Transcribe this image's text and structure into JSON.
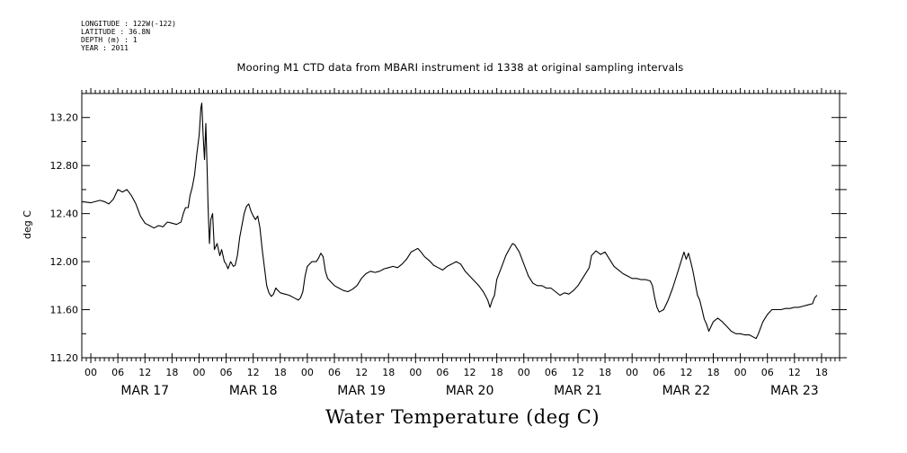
{
  "header": {
    "longitude": "LONGITUDE : 122W(-122)",
    "latitude": "LATITUDE : 36.8N",
    "depth": "DEPTH (m) : 1",
    "year": "YEAR : 2011"
  },
  "chart_data": {
    "type": "line",
    "title": "Mooring M1 CTD data from MBARI instrument id 1338 at original sampling intervals",
    "xlabel": "Water Temperature (deg C)",
    "ylabel": "deg C",
    "ylim": [
      11.2,
      13.4
    ],
    "yticks": [
      "13.20",
      "12.80",
      "12.40",
      "12.00",
      "11.60",
      "11.20"
    ],
    "xlim_hours": [
      -2,
      166
    ],
    "hour_labels": [
      "00",
      "06",
      "12",
      "18",
      "00",
      "06",
      "12",
      "18",
      "00",
      "06",
      "12",
      "18",
      "00",
      "06",
      "12",
      "18",
      "00",
      "06",
      "12",
      "18",
      "00",
      "06",
      "12",
      "18",
      "00",
      "06",
      "12",
      "18"
    ],
    "day_labels": [
      "MAR 17",
      "MAR 18",
      "MAR 19",
      "MAR 20",
      "MAR 21",
      "MAR 22",
      "MAR 23"
    ],
    "grid": false,
    "series": [
      {
        "color": "#000000",
        "x_unit": "hours since MAR 17 00",
        "points": [
          [
            -2,
            12.5
          ],
          [
            0,
            12.49
          ],
          [
            2,
            12.51
          ],
          [
            3,
            12.5
          ],
          [
            4,
            12.48
          ],
          [
            5,
            12.52
          ],
          [
            6,
            12.6
          ],
          [
            7,
            12.58
          ],
          [
            8,
            12.6
          ],
          [
            9,
            12.55
          ],
          [
            10,
            12.48
          ],
          [
            11,
            12.38
          ],
          [
            12,
            12.32
          ],
          [
            13,
            12.3
          ],
          [
            14,
            12.28
          ],
          [
            15,
            12.3
          ],
          [
            16,
            12.29
          ],
          [
            17,
            12.33
          ],
          [
            18,
            12.32
          ],
          [
            19,
            12.31
          ],
          [
            20,
            12.33
          ],
          [
            20.5,
            12.4
          ],
          [
            21,
            12.45
          ],
          [
            21.6,
            12.45
          ],
          [
            22,
            12.55
          ],
          [
            22.5,
            12.62
          ],
          [
            23,
            12.72
          ],
          [
            23.5,
            12.9
          ],
          [
            24,
            13.05
          ],
          [
            24.4,
            13.28
          ],
          [
            24.6,
            13.32
          ],
          [
            24.9,
            13.05
          ],
          [
            25.2,
            12.85
          ],
          [
            25.5,
            13.15
          ],
          [
            25.8,
            12.75
          ],
          [
            26,
            12.45
          ],
          [
            26.3,
            12.15
          ],
          [
            26.6,
            12.35
          ],
          [
            27,
            12.4
          ],
          [
            27.4,
            12.1
          ],
          [
            28,
            12.15
          ],
          [
            28.6,
            12.05
          ],
          [
            29,
            12.1
          ],
          [
            29.6,
            12.0
          ],
          [
            30,
            11.98
          ],
          [
            30.4,
            11.94
          ],
          [
            31,
            12.0
          ],
          [
            31.6,
            11.96
          ],
          [
            32,
            11.97
          ],
          [
            32.5,
            12.05
          ],
          [
            33,
            12.2
          ],
          [
            33.5,
            12.3
          ],
          [
            34,
            12.4
          ],
          [
            34.5,
            12.46
          ],
          [
            35,
            12.48
          ],
          [
            35.5,
            12.42
          ],
          [
            36,
            12.38
          ],
          [
            36.5,
            12.35
          ],
          [
            37,
            12.38
          ],
          [
            37.5,
            12.28
          ],
          [
            38,
            12.1
          ],
          [
            38.5,
            11.95
          ],
          [
            39,
            11.8
          ],
          [
            39.5,
            11.74
          ],
          [
            40,
            11.71
          ],
          [
            40.5,
            11.73
          ],
          [
            41,
            11.78
          ],
          [
            41.5,
            11.76
          ],
          [
            42,
            11.74
          ],
          [
            43,
            11.73
          ],
          [
            44,
            11.72
          ],
          [
            45,
            11.7
          ],
          [
            46,
            11.68
          ],
          [
            46.5,
            11.7
          ],
          [
            47,
            11.75
          ],
          [
            47.5,
            11.88
          ],
          [
            48,
            11.96
          ],
          [
            49,
            12.0
          ],
          [
            50,
            12.0
          ],
          [
            50.5,
            12.03
          ],
          [
            51,
            12.07
          ],
          [
            51.5,
            12.04
          ],
          [
            52,
            11.92
          ],
          [
            52.5,
            11.86
          ],
          [
            53,
            11.84
          ],
          [
            54,
            11.8
          ],
          [
            55,
            11.78
          ],
          [
            56,
            11.76
          ],
          [
            57,
            11.75
          ],
          [
            58,
            11.77
          ],
          [
            59,
            11.8
          ],
          [
            60,
            11.86
          ],
          [
            61,
            11.9
          ],
          [
            62,
            11.92
          ],
          [
            63,
            11.91
          ],
          [
            64,
            11.92
          ],
          [
            65,
            11.94
          ],
          [
            66,
            11.95
          ],
          [
            67,
            11.96
          ],
          [
            68,
            11.95
          ],
          [
            69,
            11.98
          ],
          [
            70,
            12.02
          ],
          [
            71,
            12.08
          ],
          [
            72,
            12.1
          ],
          [
            72.5,
            12.11
          ],
          [
            73,
            12.09
          ],
          [
            74,
            12.04
          ],
          [
            75,
            12.01
          ],
          [
            76,
            11.97
          ],
          [
            77,
            11.95
          ],
          [
            78,
            11.93
          ],
          [
            79,
            11.96
          ],
          [
            80,
            11.98
          ],
          [
            81,
            12.0
          ],
          [
            82,
            11.98
          ],
          [
            83,
            11.92
          ],
          [
            84,
            11.88
          ],
          [
            85,
            11.84
          ],
          [
            86,
            11.8
          ],
          [
            87,
            11.75
          ],
          [
            88,
            11.68
          ],
          [
            88.5,
            11.62
          ],
          [
            89,
            11.68
          ],
          [
            89.5,
            11.72
          ],
          [
            90,
            11.85
          ],
          [
            91,
            11.95
          ],
          [
            92,
            12.05
          ],
          [
            93,
            12.12
          ],
          [
            93.5,
            12.15
          ],
          [
            94,
            12.14
          ],
          [
            95,
            12.08
          ],
          [
            96,
            11.98
          ],
          [
            97,
            11.88
          ],
          [
            98,
            11.82
          ],
          [
            99,
            11.8
          ],
          [
            100,
            11.8
          ],
          [
            101,
            11.78
          ],
          [
            102,
            11.78
          ],
          [
            103,
            11.75
          ],
          [
            104,
            11.72
          ],
          [
            105,
            11.74
          ],
          [
            106,
            11.73
          ],
          [
            107,
            11.76
          ],
          [
            108,
            11.8
          ],
          [
            109,
            11.86
          ],
          [
            110,
            11.92
          ],
          [
            110.5,
            11.95
          ],
          [
            111,
            12.05
          ],
          [
            112,
            12.09
          ],
          [
            113,
            12.06
          ],
          [
            114,
            12.08
          ],
          [
            115,
            12.02
          ],
          [
            116,
            11.96
          ],
          [
            117,
            11.93
          ],
          [
            118,
            11.9
          ],
          [
            119,
            11.88
          ],
          [
            120,
            11.86
          ],
          [
            121,
            11.86
          ],
          [
            122,
            11.85
          ],
          [
            123,
            11.85
          ],
          [
            124,
            11.84
          ],
          [
            124.5,
            11.8
          ],
          [
            125,
            11.7
          ],
          [
            125.5,
            11.62
          ],
          [
            126,
            11.58
          ],
          [
            127,
            11.6
          ],
          [
            128,
            11.68
          ],
          [
            129,
            11.78
          ],
          [
            130,
            11.9
          ],
          [
            131,
            12.02
          ],
          [
            131.5,
            12.08
          ],
          [
            132,
            12.02
          ],
          [
            132.5,
            12.07
          ],
          [
            133,
            12.0
          ],
          [
            133.5,
            11.92
          ],
          [
            134,
            11.82
          ],
          [
            134.5,
            11.72
          ],
          [
            135,
            11.68
          ],
          [
            135.5,
            11.6
          ],
          [
            136,
            11.52
          ],
          [
            136.5,
            11.48
          ],
          [
            137,
            11.42
          ],
          [
            138,
            11.5
          ],
          [
            139,
            11.53
          ],
          [
            140,
            11.5
          ],
          [
            140.5,
            11.48
          ],
          [
            141,
            11.46
          ],
          [
            142,
            11.42
          ],
          [
            143,
            11.4
          ],
          [
            144,
            11.4
          ],
          [
            145,
            11.39
          ],
          [
            146,
            11.39
          ],
          [
            147,
            11.37
          ],
          [
            147.5,
            11.36
          ],
          [
            148,
            11.4
          ],
          [
            148.5,
            11.45
          ],
          [
            149,
            11.5
          ],
          [
            150,
            11.56
          ],
          [
            151,
            11.6
          ],
          [
            152,
            11.6
          ],
          [
            153,
            11.6
          ],
          [
            154,
            11.61
          ],
          [
            155,
            11.61
          ],
          [
            156,
            11.62
          ],
          [
            157,
            11.62
          ],
          [
            158,
            11.63
          ],
          [
            159,
            11.64
          ],
          [
            160,
            11.65
          ],
          [
            160.5,
            11.7
          ],
          [
            161,
            11.72
          ]
        ]
      }
    ]
  }
}
